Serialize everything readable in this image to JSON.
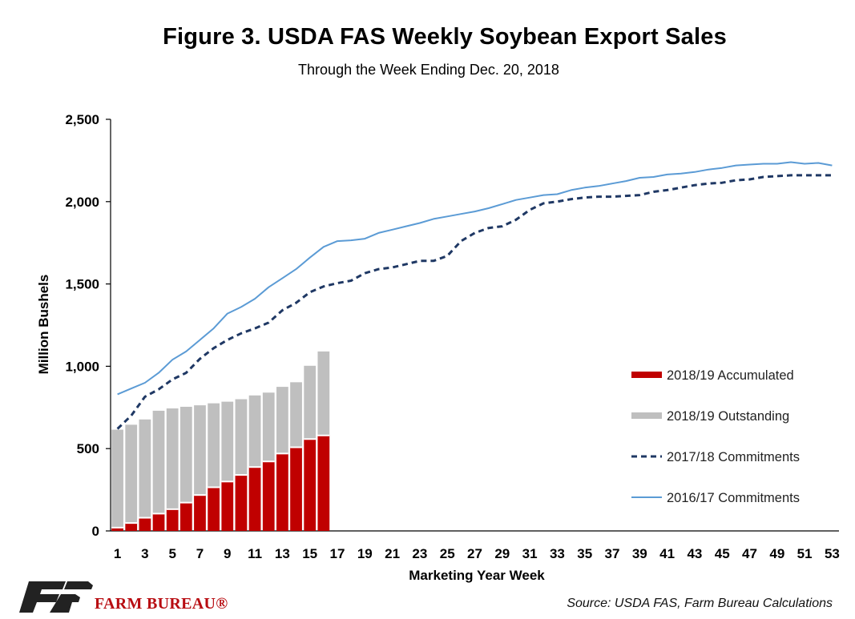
{
  "title": "Figure 3. USDA FAS Weekly Soybean Export Sales",
  "subtitle": "Through the Week Ending Dec. 20, 2018",
  "source": "Source: USDA FAS, Farm Bureau Calculations",
  "logo": {
    "text": "FARM BUREAU®",
    "initials": "FB"
  },
  "colors": {
    "accumulated": "#c00000",
    "outstanding": "#bfbfbf",
    "c1718": "#1f3864",
    "c1617": "#5b9bd5",
    "brand": "#b80c11"
  },
  "chart_data": {
    "type": "bar",
    "xlabel": "Marketing Year Week",
    "ylabel": "Million Bushels",
    "ylim": [
      0,
      2500
    ],
    "xlim": [
      1,
      53
    ],
    "yticks": [
      "0",
      "500",
      "1,000",
      "1,500",
      "2,000",
      "2,500"
    ],
    "xticks": [
      "1",
      "3",
      "5",
      "7",
      "9",
      "11",
      "13",
      "15",
      "17",
      "19",
      "21",
      "23",
      "25",
      "27",
      "29",
      "31",
      "33",
      "35",
      "37",
      "39",
      "41",
      "43",
      "45",
      "47",
      "49",
      "51",
      "53"
    ],
    "legend_position": "right",
    "stacked_series": [
      {
        "name": "2018/19 Accumulated",
        "style": "bar-bottom",
        "values": [
          20,
          48,
          80,
          105,
          132,
          172,
          218,
          265,
          300,
          340,
          388,
          422,
          470,
          508,
          558,
          580
        ]
      },
      {
        "name": "2018/19 Outstanding",
        "style": "bar-top",
        "values": [
          595,
          597,
          597,
          625,
          612,
          582,
          545,
          510,
          485,
          460,
          435,
          418,
          405,
          395,
          445,
          510
        ]
      }
    ],
    "line_series": [
      {
        "name": "2017/18 Commitments",
        "style": "dashed",
        "values": [
          620,
          700,
          815,
          860,
          920,
          960,
          1045,
          1110,
          1160,
          1200,
          1230,
          1265,
          1340,
          1385,
          1450,
          1485,
          1505,
          1520,
          1565,
          1590,
          1600,
          1620,
          1640,
          1640,
          1670,
          1760,
          1810,
          1840,
          1850,
          1890,
          1950,
          1990,
          2000,
          2015,
          2025,
          2030,
          2030,
          2035,
          2040,
          2060,
          2070,
          2085,
          2100,
          2110,
          2115,
          2130,
          2135,
          2150,
          2155,
          2160,
          2160,
          2160,
          2160
        ]
      },
      {
        "name": "2016/17 Commitments",
        "style": "solid",
        "values": [
          830,
          865,
          900,
          960,
          1040,
          1090,
          1160,
          1230,
          1320,
          1360,
          1410,
          1480,
          1535,
          1590,
          1660,
          1725,
          1760,
          1765,
          1775,
          1810,
          1830,
          1850,
          1870,
          1895,
          1910,
          1925,
          1940,
          1960,
          1985,
          2010,
          2025,
          2040,
          2045,
          2070,
          2085,
          2095,
          2110,
          2125,
          2145,
          2150,
          2165,
          2170,
          2180,
          2195,
          2205,
          2220,
          2225,
          2230,
          2230,
          2240,
          2230,
          2235,
          2220
        ]
      }
    ]
  }
}
